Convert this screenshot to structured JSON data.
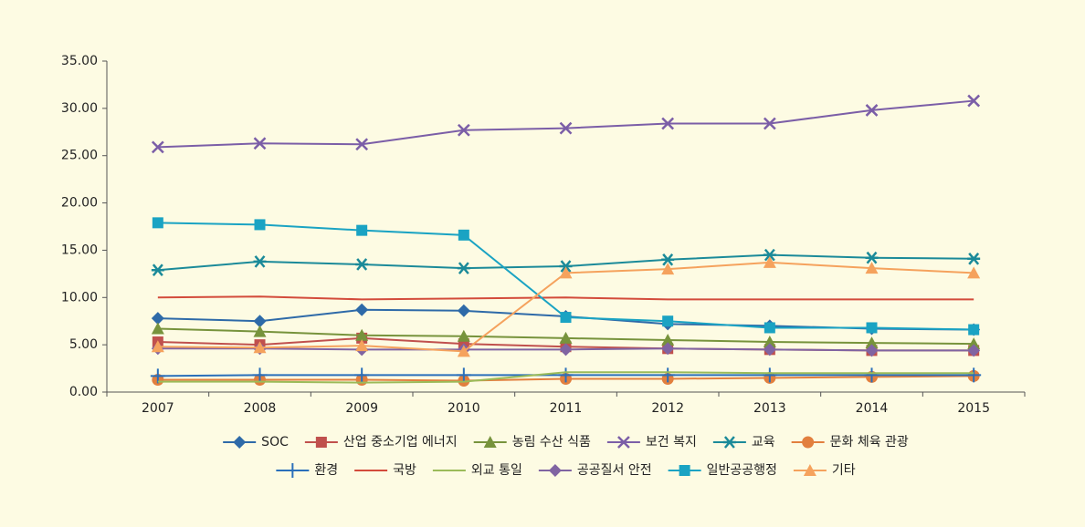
{
  "chart_data": {
    "type": "line",
    "categories": [
      "2007",
      "2008",
      "2009",
      "2010",
      "2011",
      "2012",
      "2013",
      "2014",
      "2015"
    ],
    "ylim": [
      0,
      35
    ],
    "yticks": [
      {
        "value": 0,
        "label": "0.00"
      },
      {
        "value": 5,
        "label": "5.00"
      },
      {
        "value": 10,
        "label": "10.00"
      },
      {
        "value": 15,
        "label": "15.00"
      },
      {
        "value": 20,
        "label": "20.00"
      },
      {
        "value": 25,
        "label": "25.00"
      },
      {
        "value": 30,
        "label": "30.00"
      },
      {
        "value": 35,
        "label": "35.00"
      }
    ],
    "grid": false,
    "legend": "bottom",
    "series": [
      {
        "name": "SOC",
        "color": "#2e6aa8",
        "marker": "diamond",
        "values": [
          7.8,
          7.5,
          8.7,
          8.6,
          8.0,
          7.2,
          7.0,
          6.7,
          6.6
        ]
      },
      {
        "name": "산업 중소기업 에너지",
        "color": "#c0504d",
        "marker": "square",
        "values": [
          5.3,
          5.0,
          5.7,
          5.1,
          4.8,
          4.6,
          4.5,
          4.4,
          4.4
        ]
      },
      {
        "name": "농림 수산 식품",
        "color": "#77933c",
        "marker": "triangle",
        "values": [
          6.7,
          6.4,
          6.0,
          5.9,
          5.7,
          5.5,
          5.3,
          5.2,
          5.1
        ]
      },
      {
        "name": "보건 복지",
        "color": "#7b5ea7",
        "marker": "x",
        "values": [
          25.9,
          26.3,
          26.2,
          27.7,
          27.9,
          28.4,
          28.4,
          29.8,
          30.8
        ]
      },
      {
        "name": "교육",
        "color": "#1b8a99",
        "marker": "asterisk",
        "values": [
          12.9,
          13.8,
          13.5,
          13.1,
          13.3,
          14.0,
          14.5,
          14.2,
          14.1
        ]
      },
      {
        "name": "문화 체육 관광",
        "color": "#e27f3e",
        "marker": "circle",
        "values": [
          1.3,
          1.3,
          1.3,
          1.2,
          1.4,
          1.4,
          1.5,
          1.6,
          1.7
        ]
      },
      {
        "name": "환경",
        "color": "#2a6fba",
        "marker": "plus",
        "values": [
          1.7,
          1.8,
          1.8,
          1.8,
          1.8,
          1.8,
          1.8,
          1.8,
          1.8
        ]
      },
      {
        "name": "국방",
        "color": "#d34b3b",
        "marker": "none",
        "values": [
          10.0,
          10.1,
          9.8,
          9.9,
          10.0,
          9.8,
          9.8,
          9.8,
          9.8
        ]
      },
      {
        "name": "외교 통일",
        "color": "#9bbb59",
        "marker": "none",
        "values": [
          1.1,
          1.1,
          1.0,
          1.1,
          2.1,
          2.1,
          2.0,
          2.0,
          2.0
        ]
      },
      {
        "name": "공공질서 안전",
        "color": "#8064a2",
        "marker": "diamond",
        "values": [
          4.6,
          4.6,
          4.5,
          4.5,
          4.5,
          4.6,
          4.5,
          4.4,
          4.4
        ]
      },
      {
        "name": "일반공공행정",
        "color": "#1aa3c3",
        "marker": "square",
        "values": [
          17.9,
          17.7,
          17.1,
          16.6,
          7.9,
          7.5,
          6.8,
          6.8,
          6.6
        ]
      },
      {
        "name": "기타",
        "color": "#f5a25d",
        "marker": "triangle",
        "values": [
          4.8,
          4.7,
          4.9,
          4.3,
          12.6,
          13.0,
          13.7,
          13.1,
          12.6
        ]
      }
    ]
  }
}
